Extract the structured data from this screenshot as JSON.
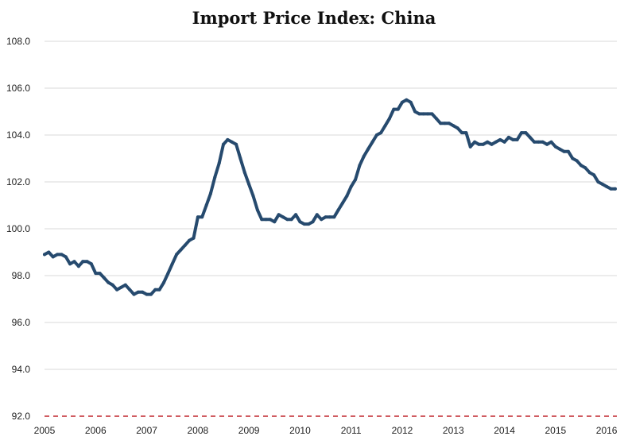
{
  "chart_data": {
    "type": "line",
    "title": "Import Price Index: China",
    "xlabel": "",
    "ylabel": "",
    "xlim": [
      2005,
      2016.2
    ],
    "ylim": [
      92,
      108
    ],
    "y_ticks": [
      "92.0",
      "94.0",
      "96.0",
      "98.0",
      "100.0",
      "102.0",
      "104.0",
      "106.0",
      "108.0"
    ],
    "x_ticks": [
      "2005",
      "2006",
      "2007",
      "2008",
      "2009",
      "2010",
      "2011",
      "2012",
      "2013",
      "2014",
      "2015",
      "2016"
    ],
    "grid": true,
    "legend": "none",
    "baseline_style": "dashed-red",
    "colors": {
      "line": "#264a6e",
      "grid": "#d9d9d9",
      "baseline": "#c0272d",
      "axis_text": "#222222"
    },
    "series": [
      {
        "x": [
          2005.0,
          2005.083,
          2005.167,
          2005.25,
          2005.333,
          2005.417,
          2005.5,
          2005.583,
          2005.667,
          2005.75,
          2005.833,
          2005.917,
          2006.0,
          2006.083,
          2006.167,
          2006.25,
          2006.333,
          2006.417,
          2006.5,
          2006.583,
          2006.667,
          2006.75,
          2006.833,
          2006.917,
          2007.0,
          2007.083,
          2007.167,
          2007.25,
          2007.333,
          2007.417,
          2007.5,
          2007.583,
          2007.667,
          2007.75,
          2007.833,
          2007.917,
          2008.0,
          2008.083,
          2008.167,
          2008.25,
          2008.333,
          2008.417,
          2008.5,
          2008.583,
          2008.667,
          2008.75,
          2008.833,
          2008.917,
          2009.0,
          2009.083,
          2009.167,
          2009.25,
          2009.333,
          2009.417,
          2009.5,
          2009.583,
          2009.667,
          2009.75,
          2009.833,
          2009.917,
          2010.0,
          2010.083,
          2010.167,
          2010.25,
          2010.333,
          2010.417,
          2010.5,
          2010.583,
          2010.667,
          2010.75,
          2010.833,
          2010.917,
          2011.0,
          2011.083,
          2011.167,
          2011.25,
          2011.333,
          2011.417,
          2011.5,
          2011.583,
          2011.667,
          2011.75,
          2011.833,
          2011.917,
          2012.0,
          2012.083,
          2012.167,
          2012.25,
          2012.333,
          2012.417,
          2012.5,
          2012.583,
          2012.667,
          2012.75,
          2012.833,
          2012.917,
          2013.0,
          2013.083,
          2013.167,
          2013.25,
          2013.333,
          2013.417,
          2013.5,
          2013.583,
          2013.667,
          2013.75,
          2013.833,
          2013.917,
          2014.0,
          2014.083,
          2014.167,
          2014.25,
          2014.333,
          2014.417,
          2014.5,
          2014.583,
          2014.667,
          2014.75,
          2014.833,
          2014.917,
          2015.0,
          2015.083,
          2015.167,
          2015.25,
          2015.333,
          2015.417,
          2015.5,
          2015.583,
          2015.667,
          2015.75,
          2015.833,
          2015.917,
          2016.0,
          2016.083,
          2016.167
        ],
        "values": [
          98.9,
          99.0,
          98.8,
          98.9,
          98.9,
          98.8,
          98.5,
          98.6,
          98.4,
          98.6,
          98.6,
          98.5,
          98.1,
          98.1,
          97.9,
          97.7,
          97.6,
          97.4,
          97.5,
          97.6,
          97.4,
          97.2,
          97.3,
          97.3,
          97.2,
          97.2,
          97.4,
          97.4,
          97.7,
          98.1,
          98.5,
          98.9,
          99.1,
          99.3,
          99.5,
          99.6,
          100.5,
          100.5,
          101.0,
          101.5,
          102.2,
          102.8,
          103.6,
          103.8,
          103.7,
          103.6,
          103.0,
          102.4,
          101.9,
          101.4,
          100.8,
          100.4,
          100.4,
          100.4,
          100.3,
          100.6,
          100.5,
          100.4,
          100.4,
          100.6,
          100.3,
          100.2,
          100.2,
          100.3,
          100.6,
          100.4,
          100.5,
          100.5,
          100.5,
          100.8,
          101.1,
          101.4,
          101.8,
          102.1,
          102.7,
          103.1,
          103.4,
          103.7,
          104.0,
          104.1,
          104.4,
          104.7,
          105.1,
          105.1,
          105.4,
          105.5,
          105.4,
          105.0,
          104.9,
          104.9,
          104.9,
          104.9,
          104.7,
          104.5,
          104.5,
          104.5,
          104.4,
          104.3,
          104.1,
          104.1,
          103.5,
          103.7,
          103.6,
          103.6,
          103.7,
          103.6,
          103.7,
          103.8,
          103.7,
          103.9,
          103.8,
          103.8,
          104.1,
          104.1,
          103.9,
          103.7,
          103.7,
          103.7,
          103.6,
          103.7,
          103.5,
          103.4,
          103.3,
          103.3,
          103.0,
          102.9,
          102.7,
          102.6,
          102.4,
          102.3,
          102.0,
          101.9,
          101.8,
          101.7,
          101.7
        ]
      }
    ]
  }
}
